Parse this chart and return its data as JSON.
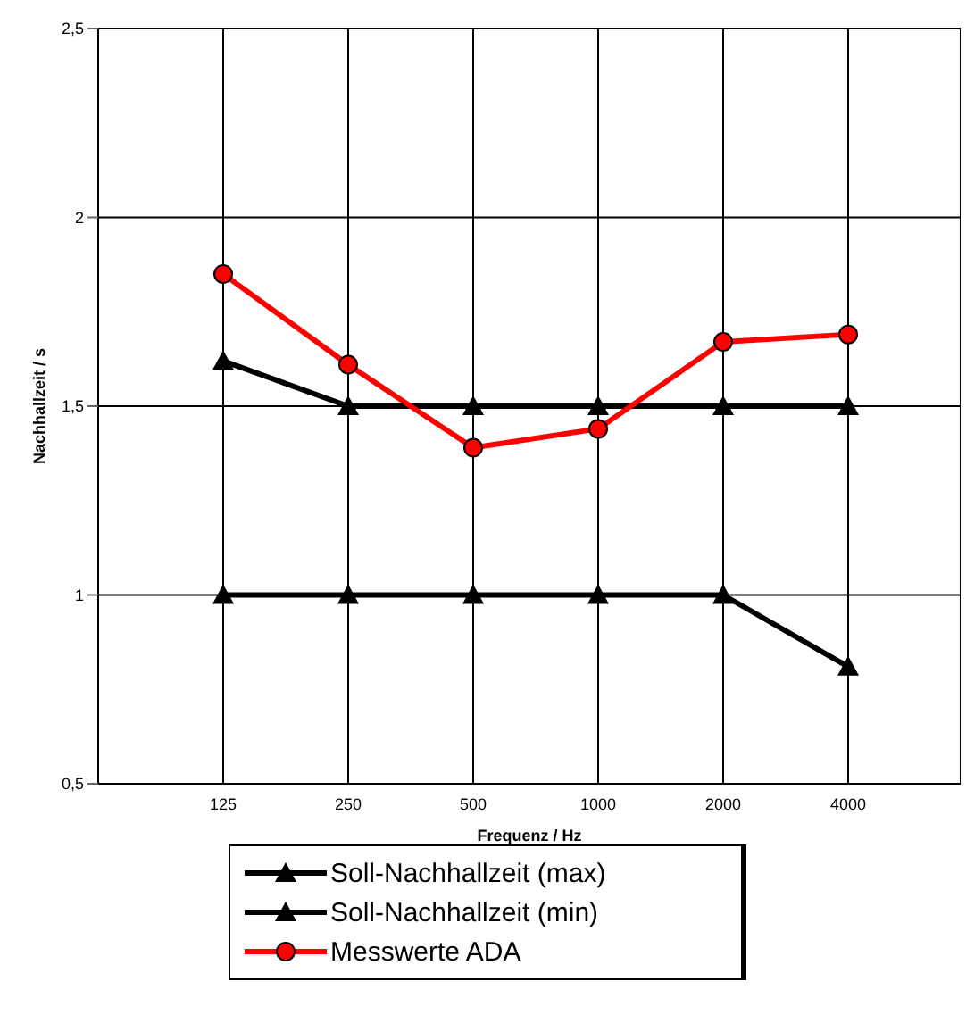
{
  "chart_data": {
    "type": "line",
    "xlabel": "Frequenz / Hz",
    "ylabel": "Nachhallzeit / s",
    "categories": [
      "125",
      "250",
      "500",
      "1000",
      "2000",
      "4000"
    ],
    "series": [
      {
        "name": "Soll-Nachhallzeit (max)",
        "color": "#000000",
        "marker": "triangle",
        "values": [
          1.62,
          1.5,
          1.5,
          1.5,
          1.5,
          1.5
        ]
      },
      {
        "name": "Soll-Nachhallzeit (min)",
        "color": "#000000",
        "marker": "triangle",
        "values": [
          1,
          1,
          1,
          1,
          1,
          0.81
        ]
      },
      {
        "name": "Messwerte ADA",
        "color": "#ff0000",
        "marker": "circle",
        "values": [
          1.85,
          1.61,
          1.39,
          1.44,
          1.67,
          1.69
        ]
      }
    ],
    "ylim": [
      0.5,
      2.5
    ],
    "yticks": [
      {
        "value": 0.5,
        "label": "0,5"
      },
      1,
      {
        "value": 1.5,
        "label": "1,5"
      },
      2,
      {
        "value": 2.5,
        "label": "2,5"
      }
    ],
    "grid": true,
    "legend": "bottom",
    "line_style": "solid"
  }
}
